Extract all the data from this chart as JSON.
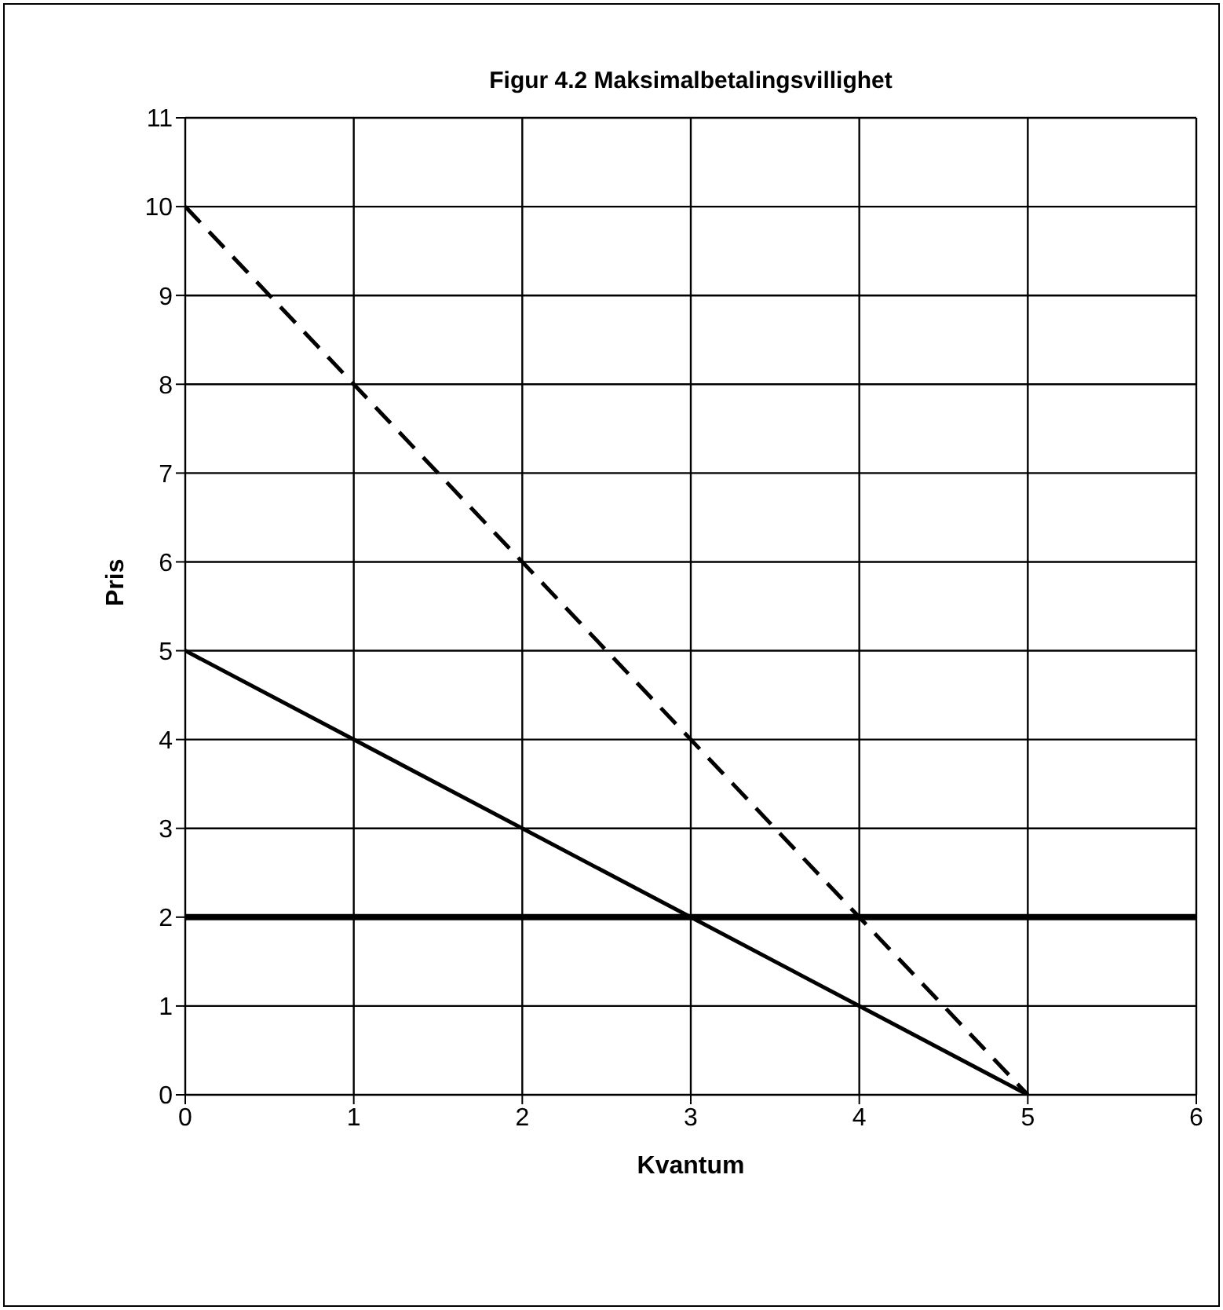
{
  "chart_data": {
    "type": "line",
    "title": "Figur 4.2 Maksimalbetalingsvillighet",
    "xlabel": "Kvantum",
    "ylabel": "Pris",
    "x": [
      0,
      5
    ],
    "series": [
      {
        "values": [
          10,
          0
        ],
        "color": "#000000",
        "line_style": "dashed"
      },
      {
        "values": [
          5,
          0
        ],
        "color": "#000000",
        "line_style": "solid"
      }
    ],
    "ref_lines": [
      {
        "axis": "y",
        "value": 2,
        "color": "#000000"
      }
    ],
    "xlim": [
      0,
      6
    ],
    "xticks": [
      0,
      1,
      2,
      3,
      4,
      5,
      6
    ],
    "ylim": [
      0,
      11
    ],
    "yticks": [
      0,
      1,
      2,
      3,
      4,
      5,
      6,
      7,
      8,
      9,
      10,
      11
    ],
    "grid": true,
    "marker": "none"
  }
}
